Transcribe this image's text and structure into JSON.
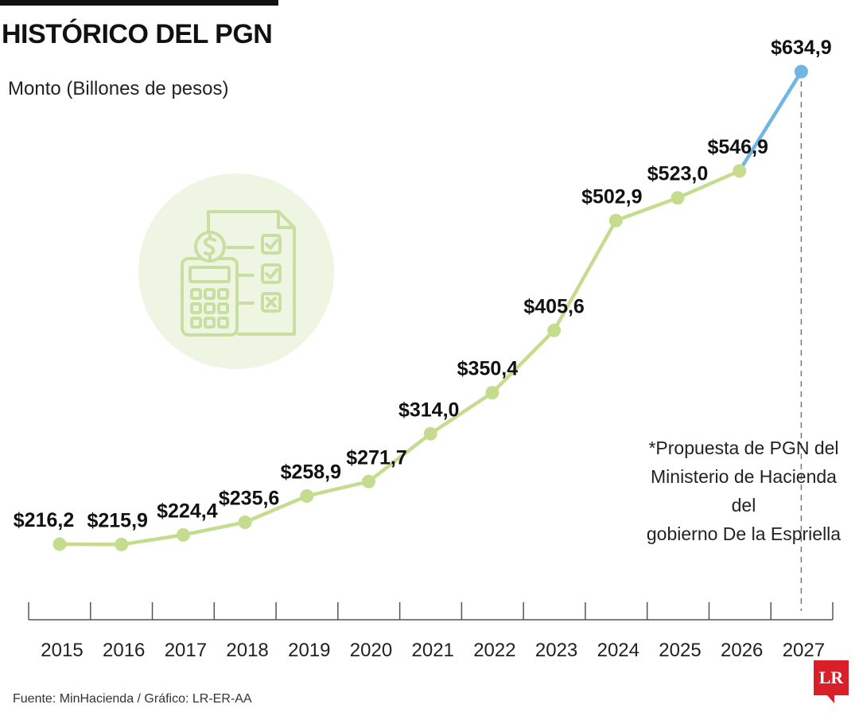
{
  "header": {
    "title": "HISTÓRICO DEL PGN",
    "subtitle": "Monto (Billones de pesos)"
  },
  "note": {
    "line1": "*Propuesta de PGN del",
    "line2": "Ministerio de Hacienda del",
    "line3": "gobierno De la Espriella"
  },
  "footer": {
    "source": "Fuente: MinHacienda / Gráfico: LR-ER-AA",
    "logo": "LR"
  },
  "icons": {
    "illustration": "budget-document-calculator-icon"
  },
  "colors": {
    "historic_line": "#c5dc8e",
    "proposal_line": "#6fb6e4",
    "icon_stroke": "#c9dea1",
    "icon_circle": "#eef5e3",
    "logo": "#d91f2a"
  },
  "chart_data": {
    "type": "line",
    "categories": [
      "2015",
      "2016",
      "2017",
      "2018",
      "2019",
      "2020",
      "2021",
      "2022",
      "2023",
      "2024",
      "2025",
      "2026",
      "2027"
    ],
    "values": [
      216.2,
      215.9,
      224.4,
      235.6,
      258.9,
      271.7,
      314.0,
      350.4,
      405.6,
      502.9,
      523.0,
      546.9,
      634.9
    ],
    "value_labels": [
      "$216,2",
      "$215,9",
      "$224,4",
      "$235,6",
      "$258,9",
      "$271,7",
      "$314,0",
      "$350,4",
      "$405,6",
      "$502,9",
      "$523,0",
      "$546,9",
      "$634,9"
    ],
    "highlighted_category": "2027",
    "ylim": [
      150,
      650
    ],
    "grid": false,
    "legend": "none"
  }
}
